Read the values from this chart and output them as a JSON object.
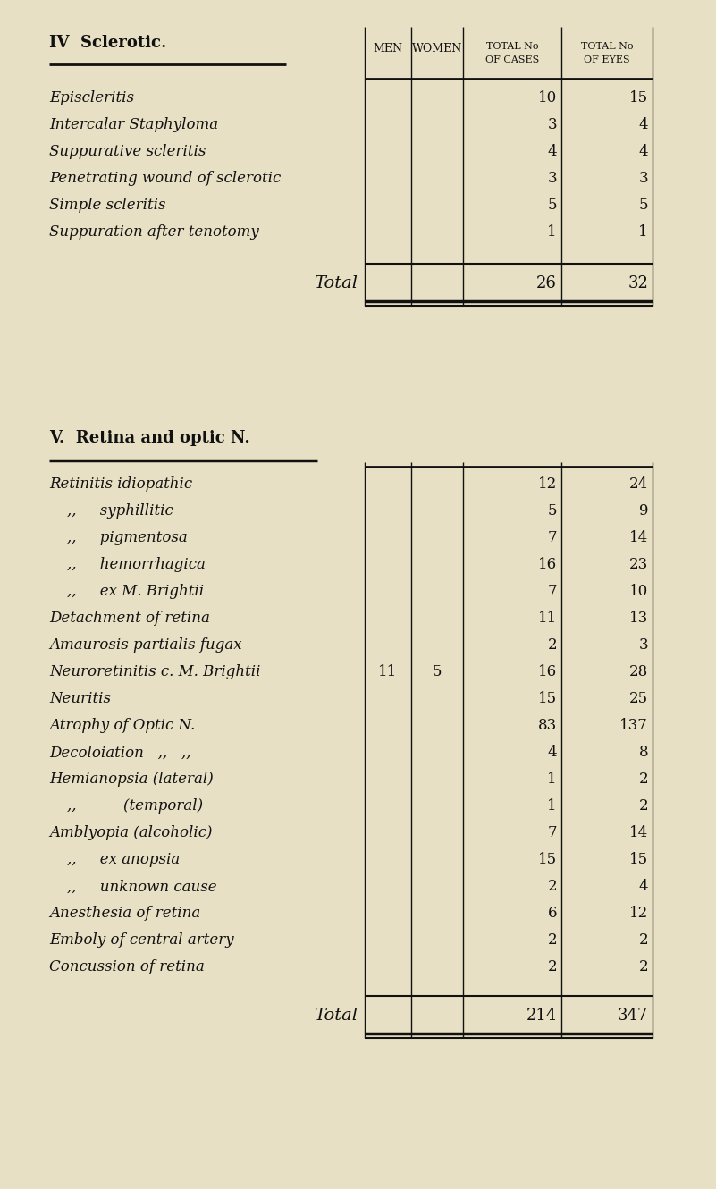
{
  "bg_color": "#e8e0c4",
  "section1": {
    "title": "IV  Sclerotic.",
    "rows": [
      {
        "label": "Episcleritis",
        "men": "",
        "women": "",
        "cases": "10",
        "eyes": "15"
      },
      {
        "label": "Intercalar Staphyloma",
        "men": "",
        "women": "",
        "cases": "3",
        "eyes": "4"
      },
      {
        "label": "Suppurative scleritis",
        "men": "",
        "women": "",
        "cases": "4",
        "eyes": "4"
      },
      {
        "label": "Penetrating wound of sclerotic",
        "men": "",
        "women": "",
        "cases": "3",
        "eyes": "3"
      },
      {
        "label": "Simple scleritis",
        "men": "",
        "women": "",
        "cases": "5",
        "eyes": "5"
      },
      {
        "label": "Suppuration after tenotomy",
        "men": "",
        "women": "",
        "cases": "1",
        "eyes": "1"
      }
    ],
    "total_label": "Total",
    "total_cases": "26",
    "total_eyes": "32"
  },
  "section2": {
    "title": "V.  Retina and optic N.",
    "rows": [
      {
        "label": "Retinitis idiopathic",
        "men": "",
        "women": "",
        "cases": "12",
        "eyes": "24",
        "indent": false
      },
      {
        "label": ",,     syphillitic",
        "men": "",
        "women": "",
        "cases": "5",
        "eyes": "9",
        "indent": true
      },
      {
        "label": ",,     pigmentosa",
        "men": "",
        "women": "",
        "cases": "7",
        "eyes": "14",
        "indent": true
      },
      {
        "label": ",,     hemorrhagica",
        "men": "",
        "women": "",
        "cases": "16",
        "eyes": "23",
        "indent": true
      },
      {
        "label": ",,     ex M. Brightii",
        "men": "",
        "women": "",
        "cases": "7",
        "eyes": "10",
        "indent": true
      },
      {
        "label": "Detachment of retina",
        "men": "",
        "women": "",
        "cases": "11",
        "eyes": "13",
        "indent": false
      },
      {
        "label": "Amaurosis partialis fugax",
        "men": "",
        "women": "",
        "cases": "2",
        "eyes": "3",
        "indent": false
      },
      {
        "label": "Neuroretinitis c. M. Brightii",
        "men": "11",
        "women": "5",
        "cases": "16",
        "eyes": "28",
        "indent": false
      },
      {
        "label": "Neuritis",
        "men": "",
        "women": "",
        "cases": "15",
        "eyes": "25",
        "indent": false
      },
      {
        "label": "Atrophy of Optic N.",
        "men": "",
        "women": "",
        "cases": "83",
        "eyes": "137",
        "indent": false
      },
      {
        "label": "Decoloiation   ,,   ,,",
        "men": "",
        "women": "",
        "cases": "4",
        "eyes": "8",
        "indent": false
      },
      {
        "label": "Hemianopsia (lateral)",
        "men": "",
        "women": "",
        "cases": "1",
        "eyes": "2",
        "indent": false
      },
      {
        "label": ",,          (temporal)",
        "men": "",
        "women": "",
        "cases": "1",
        "eyes": "2",
        "indent": true
      },
      {
        "label": "Amblyopia (alcoholic)",
        "men": "",
        "women": "",
        "cases": "7",
        "eyes": "14",
        "indent": false
      },
      {
        "label": ",,     ex anopsia",
        "men": "",
        "women": "",
        "cases": "15",
        "eyes": "15",
        "indent": true
      },
      {
        "label": ",,     unknown cause",
        "men": "",
        "women": "",
        "cases": "2",
        "eyes": "4",
        "indent": true
      },
      {
        "label": "Anesthesia of retina",
        "men": "",
        "women": "",
        "cases": "6",
        "eyes": "12",
        "indent": false
      },
      {
        "label": "Emboly of central artery",
        "men": "",
        "women": "",
        "cases": "2",
        "eyes": "2",
        "indent": false
      },
      {
        "label": "Concussion of retina",
        "men": "",
        "women": "",
        "cases": "2",
        "eyes": "2",
        "indent": false
      }
    ],
    "total_label": "Total",
    "total_men": "—",
    "total_women": "—",
    "total_cases": "214",
    "total_eyes": "347"
  },
  "text_color": "#111111",
  "line_color": "#111111"
}
